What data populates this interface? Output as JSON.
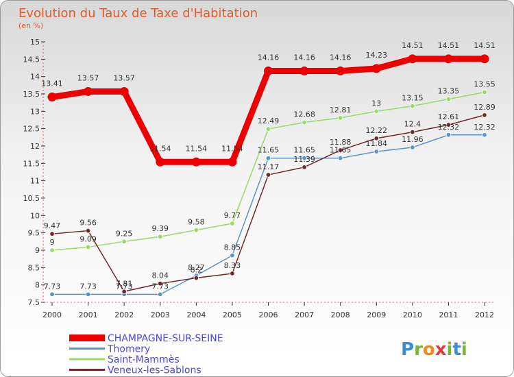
{
  "chart_data": {
    "type": "line",
    "title": "Evolution du Taux de Taxe d'Habitation",
    "subtitle": "(en %)",
    "x": [
      "2000",
      "2001",
      "2002",
      "2003",
      "2004",
      "2005",
      "2006",
      "2007",
      "2008",
      "2009",
      "2010",
      "2011",
      "2012"
    ],
    "y_ticks": [
      "7.5",
      "8",
      "8.5",
      "9",
      "9.5",
      "10",
      "10.5",
      "11",
      "11.5",
      "12",
      "12.5",
      "13",
      "13.5",
      "14",
      "14.5",
      "15"
    ],
    "ylim": [
      7.5,
      15
    ],
    "grid": false,
    "legend_position": "bottom-left",
    "series": [
      {
        "name": "CHAMPAGNE-SUR-SEINE",
        "color": "#ee0000",
        "values": [
          13.41,
          13.57,
          13.57,
          11.54,
          11.54,
          11.54,
          14.16,
          14.16,
          14.16,
          14.23,
          14.51,
          14.51,
          14.51
        ],
        "labels": [
          "13.41",
          "13.57",
          "13.57",
          "11.54",
          "11.54",
          "11.54",
          "14.16",
          "14.16",
          "14.16",
          "14.23",
          "14.51",
          "14.51",
          "14.51"
        ]
      },
      {
        "name": "Thomery",
        "color": "#5b93c7",
        "values": [
          7.73,
          7.73,
          7.73,
          7.73,
          8.27,
          8.85,
          11.65,
          11.65,
          11.65,
          11.84,
          11.96,
          12.32,
          12.32
        ],
        "labels": [
          "7.73",
          "7.73",
          "7.73",
          "7.73",
          "8.27",
          "8.85",
          "11.65",
          "11.65",
          "11.65",
          "11.84",
          "11.96",
          "12.32",
          "12.32"
        ]
      },
      {
        "name": "Saint-Mammès",
        "color": "#99d966",
        "values": [
          9,
          9.09,
          9.25,
          9.39,
          9.58,
          9.77,
          12.49,
          12.68,
          12.81,
          13,
          13.15,
          13.35,
          13.55
        ],
        "labels": [
          "9",
          "9.09",
          "9.25",
          "9.39",
          "9.58",
          "9.77",
          "12.49",
          "12.68",
          "12.81",
          "13",
          "13.15",
          "13.35",
          "13.55"
        ]
      },
      {
        "name": "Veneux-les-Sablons",
        "color": "#6e2a2a",
        "values": [
          9.47,
          9.56,
          7.81,
          8.04,
          8.2,
          8.33,
          11.17,
          11.39,
          11.88,
          12.22,
          12.4,
          12.61,
          12.89
        ],
        "labels": [
          "9.47",
          "9.56",
          "7.81",
          "8.04",
          "8.2",
          "8.33",
          "11.17",
          "11.39",
          "11.88",
          "12.22",
          "12.4",
          "12.61",
          "12.89"
        ]
      }
    ]
  },
  "brand": {
    "letters": [
      "P",
      "r",
      "o",
      "x",
      "i",
      "t",
      "i"
    ]
  }
}
